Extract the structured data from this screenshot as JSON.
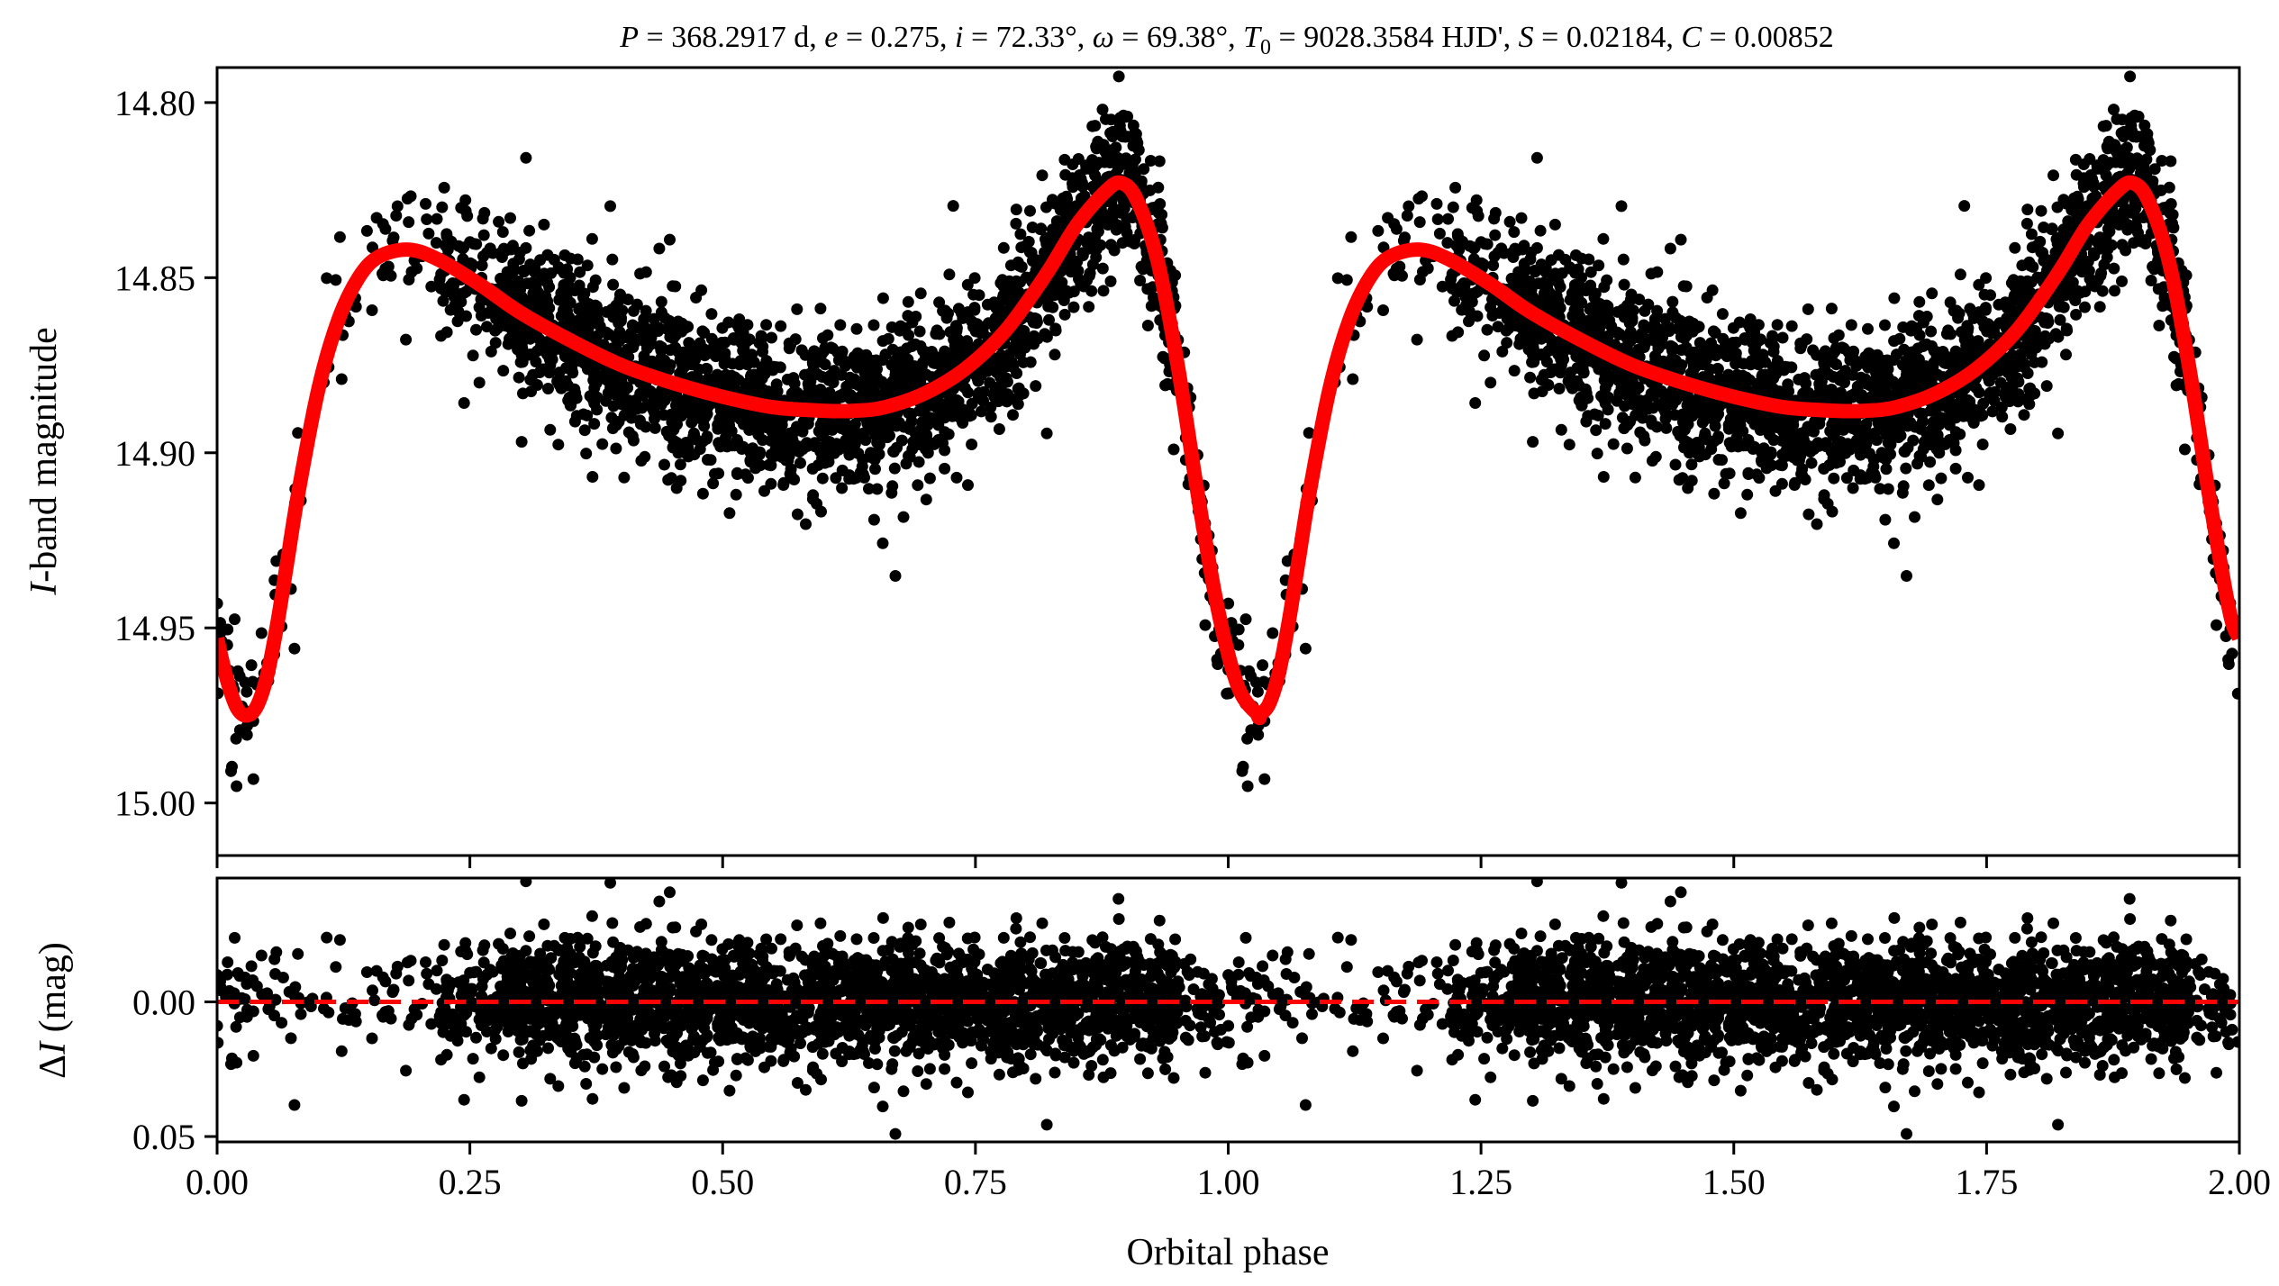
{
  "chart_data": [
    {
      "type": "scatter",
      "panel": "light-curve",
      "title": "P = 368.2917 d, e = 0.275, i = 72.33°, ω = 69.38°, T0 = 9028.3584 HJD', S = 0.02184, C = 0.00852",
      "title_parts": {
        "P_label": "P",
        "P_value": "368.2917 d",
        "e_label": "e",
        "e_value": "0.275",
        "i_label": "i",
        "i_value": "72.33°",
        "omega_label": "ω",
        "omega_value": "69.38°",
        "T0_label": "T",
        "T0_sub": "0",
        "T0_value": "9028.3584 HJD'",
        "S_label": "S",
        "S_value": "0.02184",
        "C_label": "C",
        "C_value": "0.00852"
      },
      "xlabel": "Orbital phase",
      "ylabel_italic": "I",
      "ylabel_rest": "-band magnitude",
      "xlim": [
        0.0,
        2.0
      ],
      "ylim": [
        15.015,
        14.79
      ],
      "y_inverted": true,
      "xticks": [
        "0.00",
        "0.25",
        "0.50",
        "0.75",
        "1.00",
        "1.25",
        "1.50",
        "1.75",
        "2.00"
      ],
      "yticks": [
        "14.80",
        "14.85",
        "14.90",
        "14.95",
        "15.00"
      ],
      "ytick_values": [
        14.8,
        14.85,
        14.9,
        14.95,
        15.0
      ],
      "series": [
        {
          "name": "Observed I-band data",
          "kind": "scatter",
          "color": "#000000",
          "note": "dense phase-folded points scattering ~±0.03 mag around model, repeated for phases 1-2",
          "envelope_phase": [
            0.0,
            0.03,
            0.08,
            0.19,
            0.27,
            0.4,
            0.63,
            0.8,
            0.9,
            0.96,
            1.03
          ],
          "envelope_center": [
            14.953,
            14.975,
            14.91,
            14.842,
            14.852,
            14.873,
            14.888,
            14.86,
            14.825,
            14.9,
            14.975
          ]
        },
        {
          "name": "Orbital model",
          "kind": "line",
          "color": "#ff0000",
          "phase": [
            0.0,
            0.01,
            0.02,
            0.03,
            0.04,
            0.05,
            0.06,
            0.07,
            0.08,
            0.1,
            0.12,
            0.14,
            0.16,
            0.19,
            0.22,
            0.26,
            0.3,
            0.35,
            0.4,
            0.45,
            0.5,
            0.55,
            0.6,
            0.63,
            0.66,
            0.7,
            0.74,
            0.78,
            0.82,
            0.85,
            0.88,
            0.895,
            0.91,
            0.93,
            0.95,
            0.97,
            0.99,
            1.01,
            1.03
          ],
          "mag": [
            14.953,
            14.965,
            14.973,
            14.975,
            14.972,
            14.963,
            14.948,
            14.93,
            14.912,
            14.882,
            14.862,
            14.85,
            14.844,
            14.842,
            14.845,
            14.852,
            14.86,
            14.868,
            14.875,
            14.88,
            14.884,
            14.887,
            14.888,
            14.888,
            14.887,
            14.883,
            14.876,
            14.865,
            14.849,
            14.835,
            14.825,
            14.823,
            14.828,
            14.845,
            14.875,
            14.912,
            14.945,
            14.967,
            14.975
          ]
        }
      ]
    },
    {
      "type": "scatter",
      "panel": "residuals",
      "xlabel": "Orbital phase",
      "ylabel_prefix": "Δ",
      "ylabel_italic": "I",
      "ylabel_rest": " (mag)",
      "xlim": [
        0.0,
        2.0
      ],
      "ylim": [
        0.052,
        -0.046
      ],
      "y_inverted": true,
      "yticks": [
        "0.00",
        "0.05"
      ],
      "ytick_values": [
        0.0,
        0.05
      ],
      "series": [
        {
          "name": "Residuals",
          "kind": "scatter",
          "color": "#000000",
          "note": "residuals mostly within ±0.02 mag, outliers to about ±0.04, sparse near phase 0.0-0.25 and 1.0-1.25"
        },
        {
          "name": "Zero line",
          "kind": "line",
          "style": "dashed",
          "color": "#ff0000",
          "y": 0.0
        }
      ]
    }
  ]
}
